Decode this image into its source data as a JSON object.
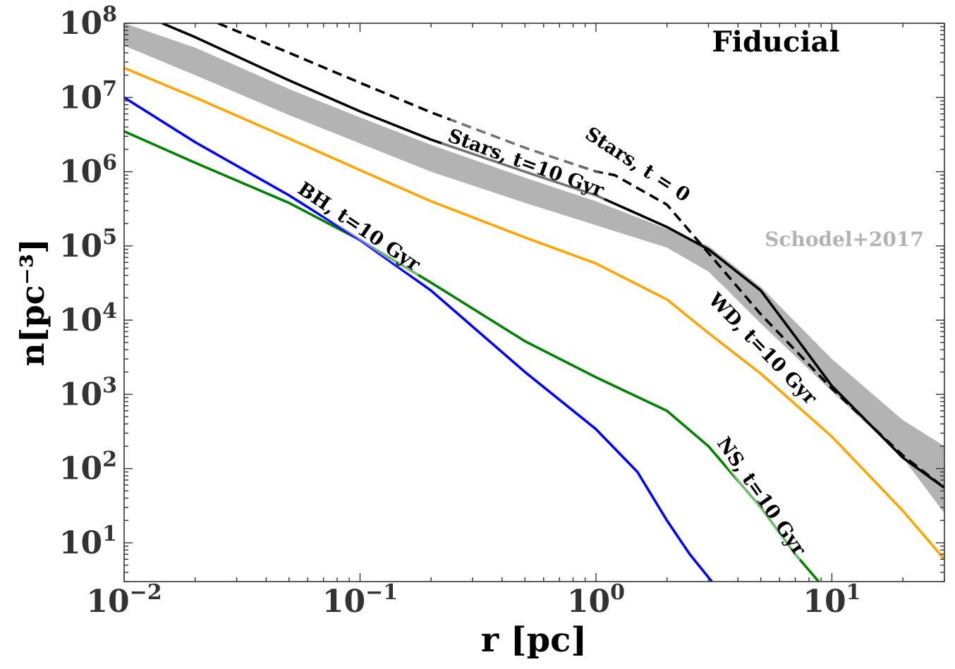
{
  "chart_data": {
    "type": "line",
    "title": "Fiducial",
    "xlabel": "r [pc]",
    "ylabel": "n[pc⁻³]",
    "xscale": "log",
    "yscale": "log",
    "xlim": [
      0.01,
      30
    ],
    "ylim": [
      3,
      100000000
    ],
    "grid": false,
    "x_ticks": [
      {
        "value": 0.01,
        "base": "10",
        "exp": "−2"
      },
      {
        "value": 0.1,
        "base": "10",
        "exp": "−1"
      },
      {
        "value": 1,
        "base": "10",
        "exp": "0"
      },
      {
        "value": 10,
        "base": "10",
        "exp": "1"
      }
    ],
    "y_ticks": [
      {
        "value": 10,
        "base": "10",
        "exp": "1"
      },
      {
        "value": 100,
        "base": "10",
        "exp": "2"
      },
      {
        "value": 1000,
        "base": "10",
        "exp": "3"
      },
      {
        "value": 10000,
        "base": "10",
        "exp": "4"
      },
      {
        "value": 100000,
        "base": "10",
        "exp": "5"
      },
      {
        "value": 1000000,
        "base": "10",
        "exp": "6"
      },
      {
        "value": 10000000,
        "base": "10",
        "exp": "7"
      },
      {
        "value": 100000000,
        "base": "10",
        "exp": "8"
      }
    ],
    "band": {
      "label": "Schodel+2017",
      "color": "#b3b3b3",
      "x": [
        0.01,
        0.02,
        0.05,
        0.1,
        0.2,
        0.5,
        1,
        2,
        3,
        5,
        10,
        20,
        30
      ],
      "lower": [
        50000000,
        20000000,
        5800000,
        2400000,
        1000000,
        380000,
        190000,
        95000,
        45000,
        9000,
        1100,
        140,
        25
      ],
      "upper": [
        100000000,
        47000000,
        13000000,
        5400000,
        2300000,
        830000,
        400000,
        170000,
        100000,
        28000,
        3000,
        450,
        200
      ]
    },
    "series": [
      {
        "name": "Stars, t=0",
        "color": "#000000",
        "dash": true,
        "x": [
          0.025,
          0.05,
          0.1,
          0.2,
          0.5,
          1,
          1.2,
          2,
          3,
          5,
          10,
          20,
          30
        ],
        "y": [
          100000000,
          40000000,
          15800000,
          6300000,
          2100000,
          1000000,
          900000,
          360000,
          80000,
          12000,
          1200,
          150,
          55
        ]
      },
      {
        "name": "Stars, t=10 Gyr",
        "color": "#000000",
        "dash": false,
        "x": [
          0.0145,
          0.02,
          0.05,
          0.1,
          0.2,
          0.5,
          1,
          2,
          3,
          5,
          7,
          10,
          20,
          30
        ],
        "y": [
          100000000,
          65000000,
          17000000,
          6500000,
          2700000,
          1000000,
          480000,
          180000,
          90000,
          25000,
          6000,
          1300,
          140,
          55
        ]
      },
      {
        "name": "WD, t=10 Gyr",
        "color": "#ffa500",
        "dash": false,
        "x": [
          0.01,
          0.02,
          0.05,
          0.1,
          0.2,
          0.5,
          1,
          2,
          3,
          5,
          10,
          20,
          30
        ],
        "y": [
          25000000,
          10000000,
          2800000,
          1050000,
          400000,
          130000,
          58000,
          19000,
          6700,
          1900,
          270,
          27,
          6
        ]
      },
      {
        "name": "NS, t=10 Gyr",
        "color": "#008000",
        "dash": false,
        "x": [
          0.01,
          0.02,
          0.05,
          0.1,
          0.2,
          0.5,
          1,
          2,
          3,
          5,
          7,
          8.8
        ],
        "y": [
          3500000,
          1320000,
          380000,
          120000,
          32000,
          5200,
          1700,
          600,
          200,
          30,
          7,
          3
        ]
      },
      {
        "name": "BH, t=10 Gyr",
        "color": "#0000ff",
        "dash": false,
        "x": [
          0.01,
          0.02,
          0.05,
          0.1,
          0.2,
          0.5,
          1,
          1.5,
          2,
          2.5,
          3.1
        ],
        "y": [
          10000000,
          2500000,
          480000,
          120000,
          25000,
          2000,
          340,
          90,
          20,
          7,
          3
        ]
      }
    ],
    "annotations": [
      {
        "text": "Stars, t=10 Gyr",
        "color": "#000000"
      },
      {
        "text": "Stars, t = 0",
        "color": "#000000"
      },
      {
        "text": "BH, t=10 Gyr",
        "color": "#0000ff"
      },
      {
        "text": "WD, t=10 Gyr",
        "color": "#ffa500"
      },
      {
        "text": "NS, t=10 Gyr",
        "color": "#008000"
      }
    ]
  }
}
